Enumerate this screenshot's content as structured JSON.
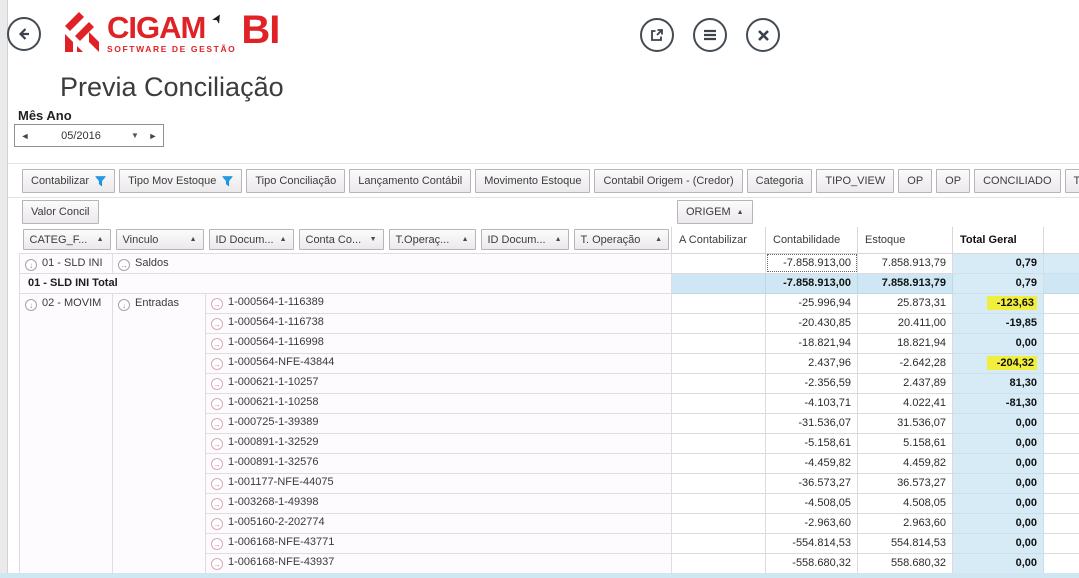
{
  "header": {
    "logo": {
      "brand": "CIGAM",
      "tagline": "SOFTWARE DE GESTÃO",
      "product": "BI"
    },
    "buttons": {
      "back": "back",
      "export": "open-external",
      "menu": "menu",
      "close": "close"
    }
  },
  "title": "Previa Conciliação",
  "period": {
    "label": "Mês Ano",
    "value": "05/2016"
  },
  "filters_row1": [
    {
      "label": "Contabilizar",
      "funnel": true
    },
    {
      "label": "Tipo Mov Estoque",
      "funnel": true
    },
    {
      "label": "Tipo Conciliação",
      "funnel": false
    },
    {
      "label": "Lançamento Contábil",
      "funnel": false
    },
    {
      "label": "Movimento Estoque",
      "funnel": false
    },
    {
      "label": "Contabil Origem - (Credor)",
      "funnel": false
    },
    {
      "label": "Categoria",
      "funnel": false
    },
    {
      "label": "TIPO_VIEW",
      "funnel": false
    },
    {
      "label": "OP",
      "funnel": false
    },
    {
      "label": "OP",
      "funnel": false
    },
    {
      "label": "CONCILIADO",
      "funnel": false
    },
    {
      "label": "Tipo Movimento",
      "funnel": false
    }
  ],
  "filters_row2": {
    "measure": "Valor Concil",
    "column_field": {
      "label": "ORIGEM",
      "sort": "asc"
    }
  },
  "table": {
    "sort_headers": [
      {
        "label": "CATEG_F...",
        "sort": "asc"
      },
      {
        "label": "Vinculo",
        "sort": "asc"
      },
      {
        "label": "ID Docum...",
        "sort": "asc"
      },
      {
        "label": "Conta Co...",
        "sort": "desc"
      },
      {
        "label": "T.Operaç...",
        "sort": "asc"
      },
      {
        "label": "ID Docum...",
        "sort": "asc"
      },
      {
        "label": "T. Operação",
        "sort": "asc"
      }
    ],
    "value_headers": [
      "A Contabilizar",
      "Contabilidade",
      "Estoque",
      "Total Geral"
    ],
    "rows": [
      {
        "kind": "group",
        "categ": "01 - SLD INI",
        "vinculo": "Saldos",
        "a_contabilizar": "",
        "contabilidade": "-7.858.913,00",
        "estoque": "7.858.913,79",
        "total_geral": "0,79",
        "selected_cell": "contabilidade"
      },
      {
        "kind": "subtotal",
        "label": "01 - SLD INI Total",
        "a_contabilizar": "",
        "contabilidade": "-7.858.913,00",
        "estoque": "7.858.913,79",
        "total_geral": "0,79"
      },
      {
        "kind": "detail",
        "categ": "02 - MOVIM",
        "vinculo": "Entradas",
        "doc": "1-000564-1-116389",
        "a_contabilizar": "",
        "contabilidade": "-25.996,94",
        "estoque": "25.873,31",
        "total_geral": "-123,63",
        "highlight": true
      },
      {
        "kind": "detail",
        "doc": "1-000564-1-116738",
        "a_contabilizar": "",
        "contabilidade": "-20.430,85",
        "estoque": "20.411,00",
        "total_geral": "-19,85",
        "highlight": false
      },
      {
        "kind": "detail",
        "doc": "1-000564-1-116998",
        "a_contabilizar": "",
        "contabilidade": "-18.821,94",
        "estoque": "18.821,94",
        "total_geral": "0,00",
        "highlight": false
      },
      {
        "kind": "detail",
        "doc": "1-000564-NFE-43844",
        "a_contabilizar": "",
        "contabilidade": "2.437,96",
        "estoque": "-2.642,28",
        "total_geral": "-204,32",
        "highlight": true
      },
      {
        "kind": "detail",
        "doc": "1-000621-1-10257",
        "a_contabilizar": "",
        "contabilidade": "-2.356,59",
        "estoque": "2.437,89",
        "total_geral": "81,30",
        "highlight": false
      },
      {
        "kind": "detail",
        "doc": "1-000621-1-10258",
        "a_contabilizar": "",
        "contabilidade": "-4.103,71",
        "estoque": "4.022,41",
        "total_geral": "-81,30",
        "highlight": false
      },
      {
        "kind": "detail",
        "doc": "1-000725-1-39389",
        "a_contabilizar": "",
        "contabilidade": "-31.536,07",
        "estoque": "31.536,07",
        "total_geral": "0,00",
        "highlight": false
      },
      {
        "kind": "detail",
        "doc": "1-000891-1-32529",
        "a_contabilizar": "",
        "contabilidade": "-5.158,61",
        "estoque": "5.158,61",
        "total_geral": "0,00",
        "highlight": false
      },
      {
        "kind": "detail",
        "doc": "1-000891-1-32576",
        "a_contabilizar": "",
        "contabilidade": "-4.459,82",
        "estoque": "4.459,82",
        "total_geral": "0,00",
        "highlight": false
      },
      {
        "kind": "detail",
        "doc": "1-001177-NFE-44075",
        "a_contabilizar": "",
        "contabilidade": "-36.573,27",
        "estoque": "36.573,27",
        "total_geral": "0,00",
        "highlight": false
      },
      {
        "kind": "detail",
        "doc": "1-003268-1-49398",
        "a_contabilizar": "",
        "contabilidade": "-4.508,05",
        "estoque": "4.508,05",
        "total_geral": "0,00",
        "highlight": false
      },
      {
        "kind": "detail",
        "doc": "1-005160-2-202774",
        "a_contabilizar": "",
        "contabilidade": "-2.963,60",
        "estoque": "2.963,60",
        "total_geral": "0,00",
        "highlight": false
      },
      {
        "kind": "detail",
        "doc": "1-006168-NFE-43771",
        "a_contabilizar": "",
        "contabilidade": "-554.814,53",
        "estoque": "554.814,53",
        "total_geral": "0,00",
        "highlight": false
      },
      {
        "kind": "detail",
        "doc": "1-006168-NFE-43937",
        "a_contabilizar": "",
        "contabilidade": "-558.680,32",
        "estoque": "558.680,32",
        "total_geral": "0,00",
        "highlight": false
      }
    ]
  },
  "colors": {
    "brand_red": "#e02227",
    "funnel_blue": "#1e9be9",
    "total_blue": "#d7ebf7",
    "subtotal_blue": "#cfe7f4",
    "highlight_yellow": "#f2ee3e"
  }
}
